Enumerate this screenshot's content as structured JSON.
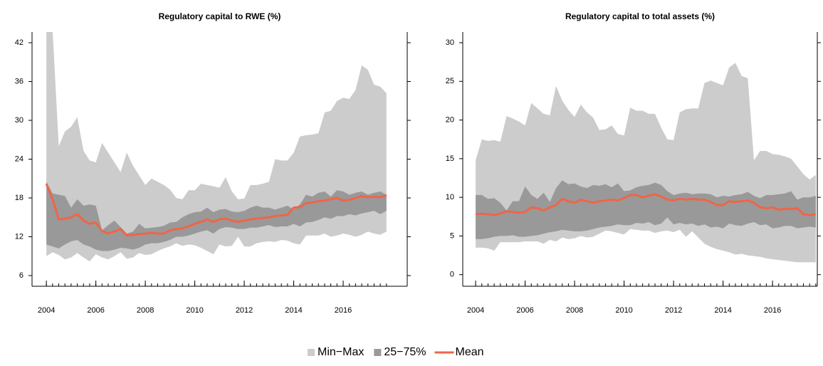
{
  "chart_data": [
    {
      "type": "band",
      "title": "Regulatory capital to RWE (%)",
      "x": [
        2004,
        2004.25,
        2004.5,
        2004.75,
        2005,
        2005.25,
        2005.5,
        2005.75,
        2006,
        2006.25,
        2006.5,
        2006.75,
        2007,
        2007.25,
        2007.5,
        2007.75,
        2008,
        2008.25,
        2008.5,
        2008.75,
        2009,
        2009.25,
        2009.5,
        2009.75,
        2010,
        2010.25,
        2010.5,
        2010.75,
        2011,
        2011.25,
        2011.5,
        2011.75,
        2012,
        2012.25,
        2012.5,
        2012.75,
        2013,
        2013.25,
        2013.5,
        2013.75,
        2014,
        2014.25,
        2014.5,
        2014.75,
        2015,
        2015.25,
        2015.5,
        2015.75,
        2016,
        2016.25,
        2016.5,
        2016.75,
        2017,
        2017.25,
        2017.5,
        2017.75
      ],
      "xlim": [
        2003.42,
        2018.59
      ],
      "xticks": [
        2004,
        2006,
        2008,
        2010,
        2012,
        2014,
        2016
      ],
      "ylim": [
        4.35,
        43.65
      ],
      "yticks": [
        6,
        12,
        18,
        24,
        30,
        36,
        42
      ],
      "series": [
        {
          "lower": [
            9,
            9.6,
            9.2,
            8.5,
            8.8,
            9.5,
            8.8,
            8.2,
            9.3,
            8.8,
            8.5,
            9,
            9.6,
            8.6,
            8.8,
            9.5,
            9.2,
            9.3,
            9.8,
            10.2,
            10.5,
            11,
            10.6,
            10.8,
            10.7,
            10.3,
            9.8,
            9.3,
            10.8,
            10.5,
            10.6,
            12,
            10.5,
            10.5,
            11,
            11.2,
            11.3,
            11.2,
            11.5,
            11.4,
            11,
            10.8,
            12.2,
            12.2,
            12.2,
            12.5,
            12,
            12.2,
            12.5,
            12.3,
            12,
            12.3,
            12.8,
            12.5,
            12.3,
            12.8
          ],
          "upper": [
            44,
            44,
            26,
            28.3,
            29,
            30.5,
            25.3,
            23.8,
            23.5,
            26.5,
            25,
            23.5,
            22,
            25,
            23,
            21.5,
            20,
            21,
            20.5,
            20,
            19.3,
            18,
            17.8,
            19.2,
            19.2,
            20.2,
            20,
            19.8,
            19.6,
            21.2,
            19,
            17.8,
            17.9,
            20,
            20,
            20.2,
            20.5,
            24,
            23.8,
            23.8,
            25,
            27.5,
            27.7,
            27.8,
            28,
            31.2,
            31.5,
            33,
            33.5,
            33.3,
            34.7,
            38.5,
            37.8,
            35.5,
            35.2,
            34.2
          ]
        },
        {
          "lower": [
            10.8,
            10.5,
            10.2,
            10.8,
            11.3,
            11.5,
            10.8,
            10.5,
            10,
            9.8,
            9.8,
            10,
            10.3,
            10.2,
            10,
            10.3,
            10.8,
            11,
            11,
            11.2,
            11.5,
            12,
            12,
            12.2,
            12.5,
            12.8,
            13,
            12.5,
            13.2,
            13.5,
            13.4,
            13.2,
            13.2,
            13.4,
            13.4,
            13.6,
            13.8,
            13.5,
            13.6,
            13.6,
            14,
            13.6,
            14.2,
            14.3,
            14.6,
            15,
            14.8,
            15.2,
            15.2,
            15.5,
            15.3,
            15.6,
            15.8,
            16,
            15.5,
            16
          ],
          "upper": [
            20.5,
            18.7,
            18.5,
            18.3,
            16.5,
            17.8,
            16.8,
            17,
            16.8,
            13,
            13.8,
            14.5,
            13.5,
            12.5,
            12.8,
            14,
            13.3,
            13.4,
            13.5,
            13.7,
            14.2,
            14.3,
            15,
            15.5,
            15.8,
            15.9,
            16.5,
            15.8,
            16.2,
            16.3,
            15.9,
            15.8,
            16,
            16.5,
            16.8,
            16.5,
            16.5,
            16.2,
            16.5,
            16.8,
            16.2,
            17,
            18.5,
            18.2,
            18.8,
            19,
            18.2,
            19.2,
            19,
            18.5,
            18.8,
            19,
            18.5,
            18.8,
            19,
            18.5
          ]
        },
        {
          "values": [
            20.2,
            17.8,
            14.7,
            14.8,
            15,
            15.5,
            14.5,
            14,
            14.2,
            12.9,
            12.5,
            12.8,
            13.2,
            12.2,
            12.3,
            12.4,
            12.5,
            12.6,
            12.5,
            12.5,
            13,
            13.2,
            13.3,
            13.6,
            14,
            14.3,
            14.7,
            14.3,
            14.7,
            14.8,
            14.5,
            14.3,
            14.5,
            14.7,
            14.8,
            14.9,
            15,
            15.2,
            15.3,
            15.4,
            16.5,
            16.6,
            17.2,
            17.3,
            17.5,
            17.6,
            17.8,
            18,
            17.6,
            17.7,
            18,
            18.3,
            18.1,
            18.2,
            18.1,
            18.4
          ]
        }
      ]
    },
    {
      "type": "band",
      "title": "Regulatory capital to total assets (%)",
      "x": [
        2004,
        2004.25,
        2004.5,
        2004.75,
        2005,
        2005.25,
        2005.5,
        2005.75,
        2006,
        2006.25,
        2006.5,
        2006.75,
        2007,
        2007.25,
        2007.5,
        2007.75,
        2008,
        2008.25,
        2008.5,
        2008.75,
        2009,
        2009.25,
        2009.5,
        2009.75,
        2010,
        2010.25,
        2010.5,
        2010.75,
        2011,
        2011.25,
        2011.5,
        2011.75,
        2012,
        2012.25,
        2012.5,
        2012.75,
        2013,
        2013.25,
        2013.5,
        2013.75,
        2014,
        2014.25,
        2014.5,
        2014.75,
        2015,
        2015.25,
        2015.5,
        2015.75,
        2016,
        2016.25,
        2016.5,
        2016.75,
        2017,
        2017.25,
        2017.5,
        2017.75
      ],
      "xlim": [
        2003.48,
        2017.81
      ],
      "xticks": [
        2004,
        2006,
        2008,
        2010,
        2012,
        2014,
        2016
      ],
      "ylim": [
        -1.5,
        31.38
      ],
      "yticks": [
        0,
        5,
        10,
        15,
        20,
        25,
        30
      ],
      "series": [
        {
          "lower": [
            3.5,
            3.5,
            3.4,
            3.1,
            4.2,
            4.2,
            4.2,
            4.2,
            4.3,
            4.3,
            4.3,
            4,
            4.5,
            4.3,
            4.8,
            4.6,
            4.7,
            5,
            4.8,
            4.9,
            5.3,
            5.7,
            5.6,
            5.4,
            5.2,
            5.9,
            5.8,
            5.7,
            5.7,
            5.4,
            5.6,
            5.7,
            5.5,
            5.8,
            4.9,
            5.6,
            4.8,
            4,
            3.6,
            3.3,
            3.1,
            2.9,
            2.6,
            2.7,
            2.5,
            2.4,
            2.3,
            2.1,
            2,
            1.9,
            1.8,
            1.7,
            1.6,
            1.6,
            1.6,
            1.6
          ],
          "upper": [
            14.8,
            17.5,
            17.3,
            17.4,
            17.2,
            20.5,
            20.2,
            19.8,
            19.3,
            22.2,
            21.5,
            20.8,
            20.6,
            24.4,
            22.5,
            21.3,
            20.4,
            22,
            21,
            20.3,
            18.7,
            18.8,
            19.3,
            18.2,
            18,
            21.6,
            21.2,
            21.2,
            20.8,
            20.8,
            19,
            17.5,
            17.4,
            21,
            21.4,
            21.5,
            21.5,
            24.8,
            25.1,
            24.8,
            24.5,
            26.8,
            27.4,
            25.7,
            25.4,
            14.8,
            16,
            16,
            15.6,
            15.5,
            15.3,
            15,
            14,
            13,
            12.3,
            12.9
          ]
        },
        {
          "lower": [
            4.6,
            4.6,
            4.7,
            4.9,
            5,
            5,
            5.1,
            4.9,
            4.9,
            5,
            5.1,
            5.3,
            5.5,
            5.6,
            5.8,
            5.7,
            5.6,
            5.6,
            5.7,
            5.9,
            6.1,
            6.2,
            6.3,
            6.5,
            6.4,
            6.4,
            6.7,
            6.6,
            6.8,
            6.4,
            6.6,
            7.4,
            6.5,
            6.7,
            6.5,
            6.6,
            6.3,
            6.5,
            6.1,
            6.2,
            6,
            6.6,
            6.4,
            6.3,
            6.6,
            6.8,
            6.4,
            6.5,
            6,
            6.1,
            6.3,
            6.3,
            6,
            6.1,
            6.2,
            6.1
          ],
          "upper": [
            10.3,
            10.3,
            9.8,
            9.9,
            9.3,
            8.3,
            9.5,
            9.5,
            11.4,
            10.3,
            9.8,
            10.6,
            9.4,
            11.2,
            12.2,
            11.7,
            11.8,
            11.4,
            11.2,
            11.6,
            11.5,
            11.7,
            11.3,
            11.8,
            10.8,
            10.9,
            11.3,
            11.5,
            11.6,
            11.9,
            11.6,
            10.8,
            10.3,
            10.5,
            10.6,
            10.4,
            10.5,
            10.5,
            10.4,
            10,
            10.2,
            10.1,
            10.3,
            10.4,
            10.7,
            10.2,
            9.9,
            10.3,
            10.3,
            10.4,
            10.5,
            10.8,
            9.7,
            10,
            10,
            10.2
          ]
        },
        {
          "values": [
            7.8,
            7.9,
            7.8,
            7.7,
            7.9,
            8.2,
            8.1,
            8,
            8.1,
            8.7,
            8.6,
            8.3,
            8.7,
            9,
            9.8,
            9.5,
            9.3,
            9.7,
            9.5,
            9.3,
            9.5,
            9.6,
            9.7,
            9.6,
            9.9,
            10.3,
            10.3,
            10,
            10.2,
            10.4,
            10.1,
            9.7,
            9.6,
            9.8,
            9.7,
            9.8,
            9.7,
            9.7,
            9.4,
            9,
            9,
            9.5,
            9.4,
            9.5,
            9.6,
            9.3,
            8.7,
            8.6,
            8.7,
            8.4,
            8.5,
            8.5,
            8.6,
            7.8,
            7.7,
            7.8
          ]
        }
      ]
    }
  ],
  "legend": {
    "position": "bottom",
    "entries": [
      {
        "name": "Min−Max",
        "color": "#cccccc"
      },
      {
        "name": "25−75%",
        "color": "#999999"
      },
      {
        "name": "Mean",
        "color": "#ef6548"
      }
    ]
  }
}
